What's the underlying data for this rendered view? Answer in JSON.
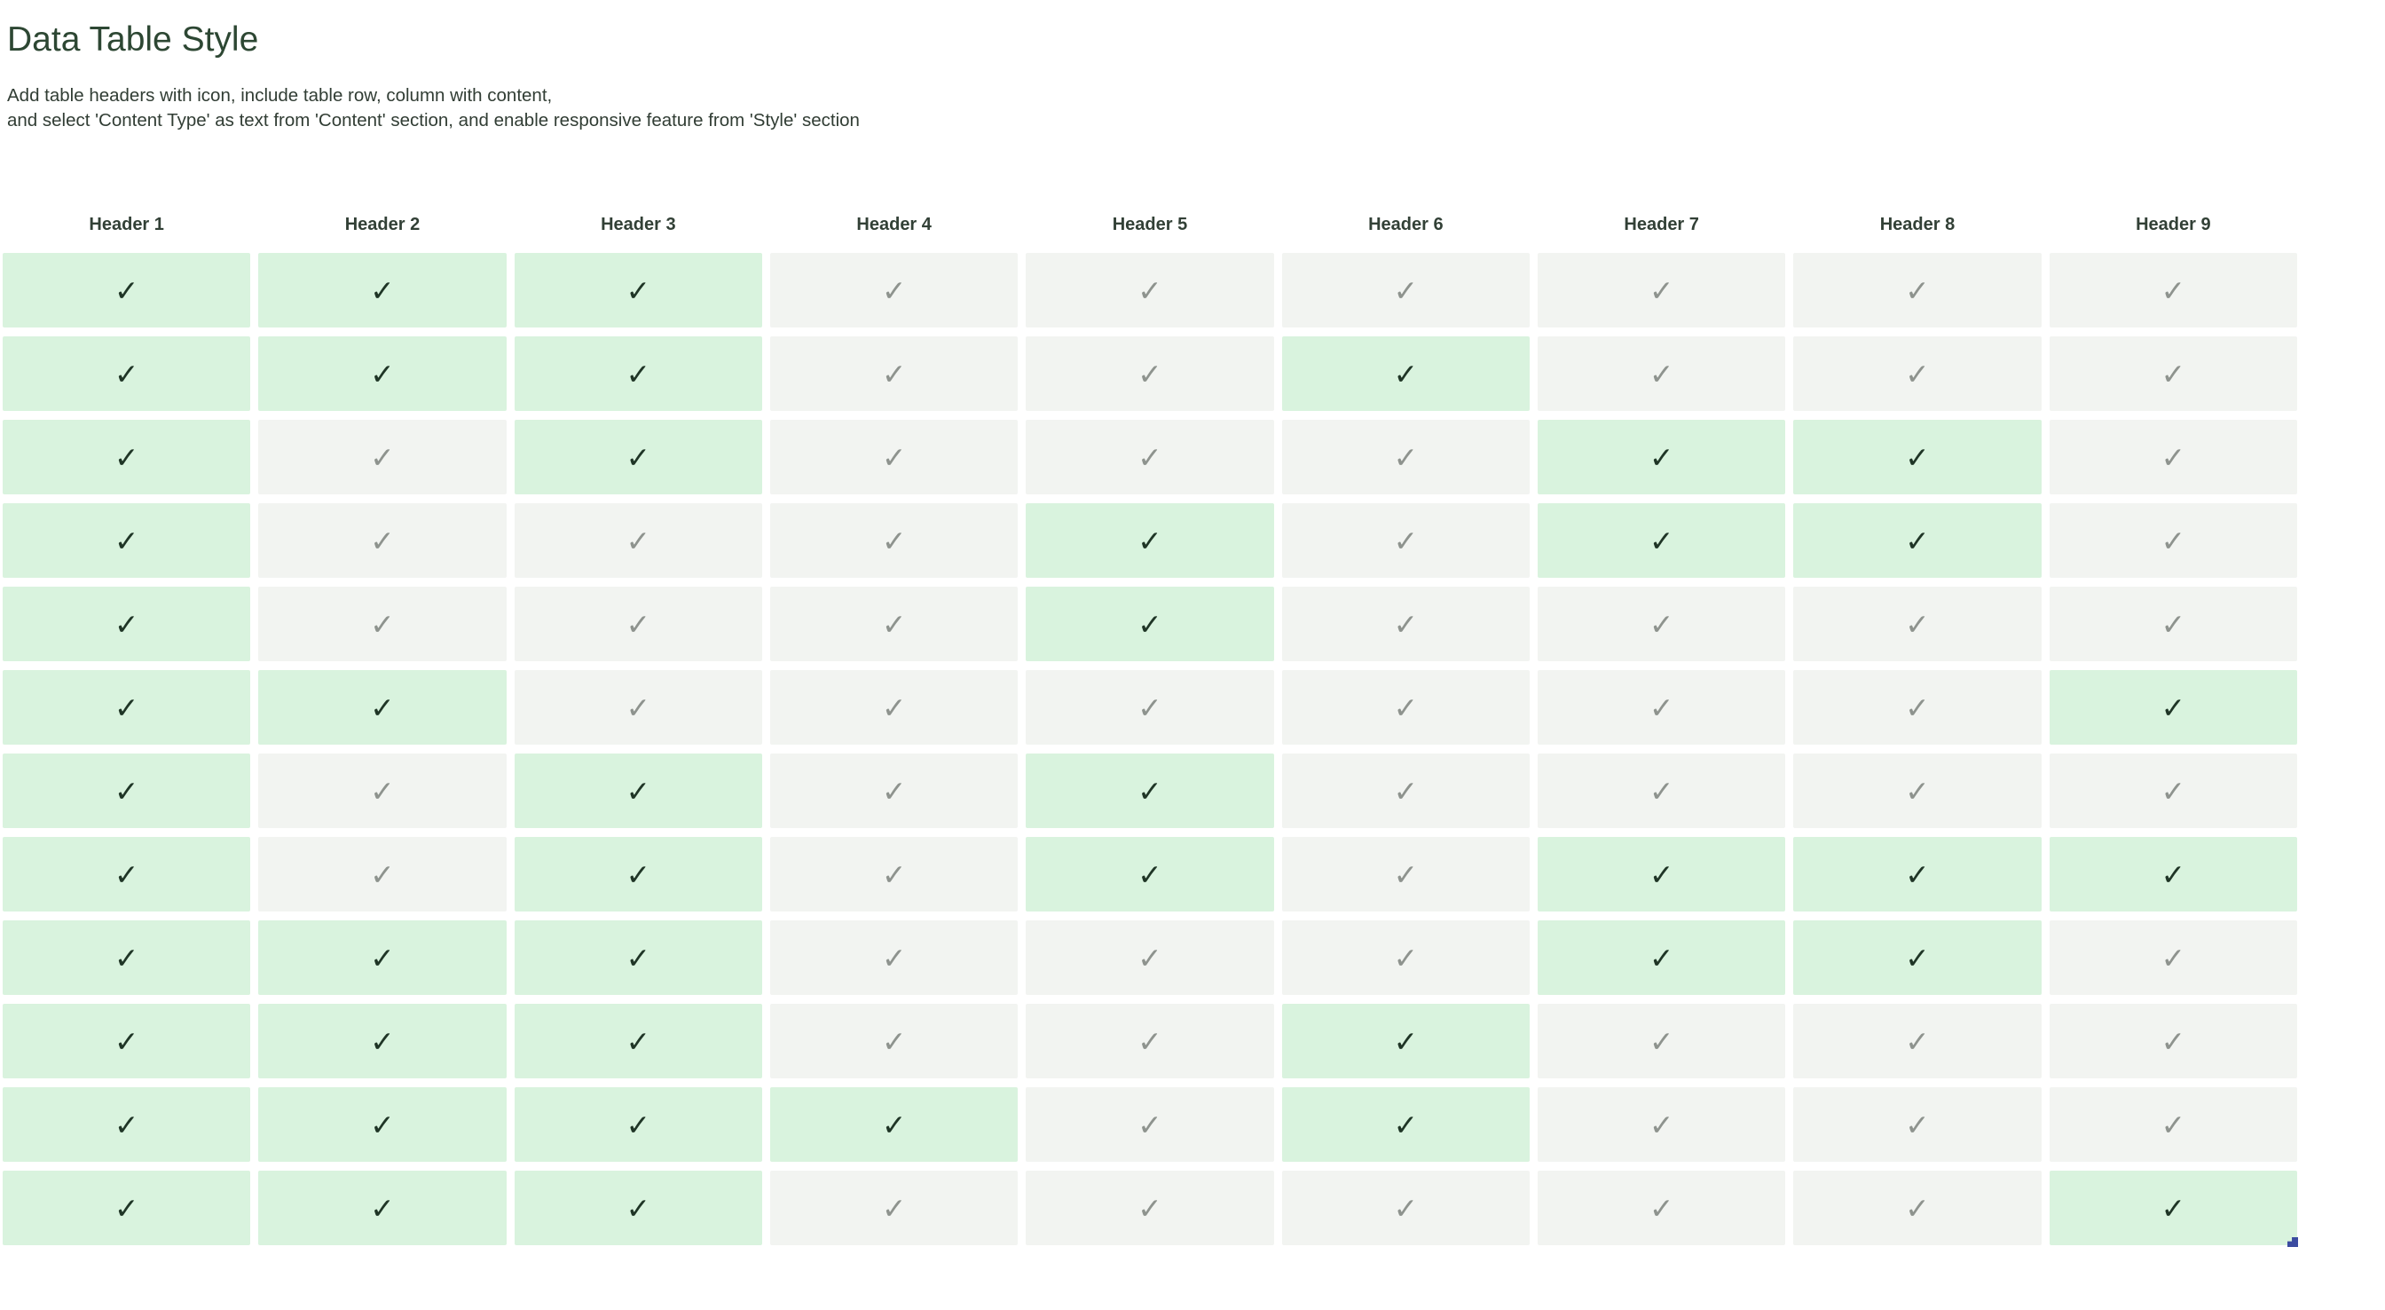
{
  "page": {
    "title": "Data Table Style",
    "subtitle_line1": "Add table headers with icon, include table row, column with content,",
    "subtitle_line2": "and select 'Content Type' as text from 'Content' section, and enable responsive feature from 'Style' section"
  },
  "table": {
    "headers": [
      "Header 1",
      "Header 2",
      "Header 3",
      "Header 4",
      "Header 5",
      "Header 6",
      "Header 7",
      "Header 8",
      "Header 9"
    ],
    "check_glyph": "✓",
    "rows": [
      [
        1,
        1,
        1,
        0,
        0,
        0,
        0,
        0,
        0
      ],
      [
        1,
        1,
        1,
        0,
        0,
        1,
        0,
        0,
        0
      ],
      [
        1,
        0,
        1,
        0,
        0,
        0,
        1,
        1,
        0
      ],
      [
        1,
        0,
        0,
        0,
        1,
        0,
        1,
        1,
        0
      ],
      [
        1,
        0,
        0,
        0,
        1,
        0,
        0,
        0,
        0
      ],
      [
        1,
        1,
        0,
        0,
        0,
        0,
        0,
        0,
        1
      ],
      [
        1,
        0,
        1,
        0,
        1,
        0,
        0,
        0,
        0
      ],
      [
        1,
        0,
        1,
        0,
        1,
        0,
        1,
        1,
        1
      ],
      [
        1,
        1,
        1,
        0,
        0,
        0,
        1,
        1,
        0
      ],
      [
        1,
        1,
        1,
        0,
        0,
        1,
        0,
        0,
        0
      ],
      [
        1,
        1,
        1,
        1,
        0,
        1,
        0,
        0,
        0
      ],
      [
        1,
        1,
        1,
        0,
        0,
        0,
        0,
        0,
        1
      ]
    ],
    "colors": {
      "highlighted_cell_bg": "#d9f3de",
      "highlighted_check": "#1f3526",
      "muted_cell_bg": "#f2f4f1",
      "muted_check": "#8e938e",
      "header_text": "#324036",
      "title_text": "#2d4733"
    }
  },
  "icons": {
    "resize_handle_color": "#3b4ba0"
  }
}
